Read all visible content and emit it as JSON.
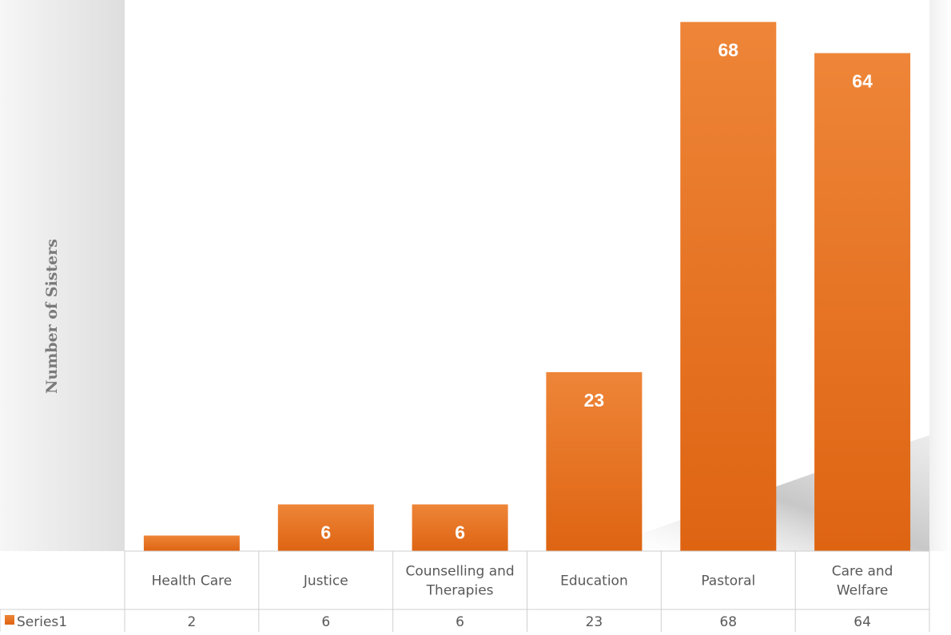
{
  "chart_data": {
    "type": "bar",
    "title": "",
    "xlabel": "",
    "ylabel": "Number of Sisters",
    "categories": [
      [
        "Health Care"
      ],
      [
        "Justice"
      ],
      [
        "Counselling and",
        "Therapies"
      ],
      [
        "Education"
      ],
      [
        "Pastoral"
      ],
      [
        "Care and",
        "Welfare"
      ]
    ],
    "series": [
      {
        "name": "Series1",
        "values": [
          2,
          6,
          6,
          23,
          68,
          64
        ],
        "color": "#E46C0A"
      }
    ],
    "data_labels": [
      "",
      "6",
      "6",
      "23",
      "68",
      "64"
    ],
    "ylim": [
      0,
      70
    ],
    "grid": false,
    "legend": "data-table",
    "data_table": true
  }
}
